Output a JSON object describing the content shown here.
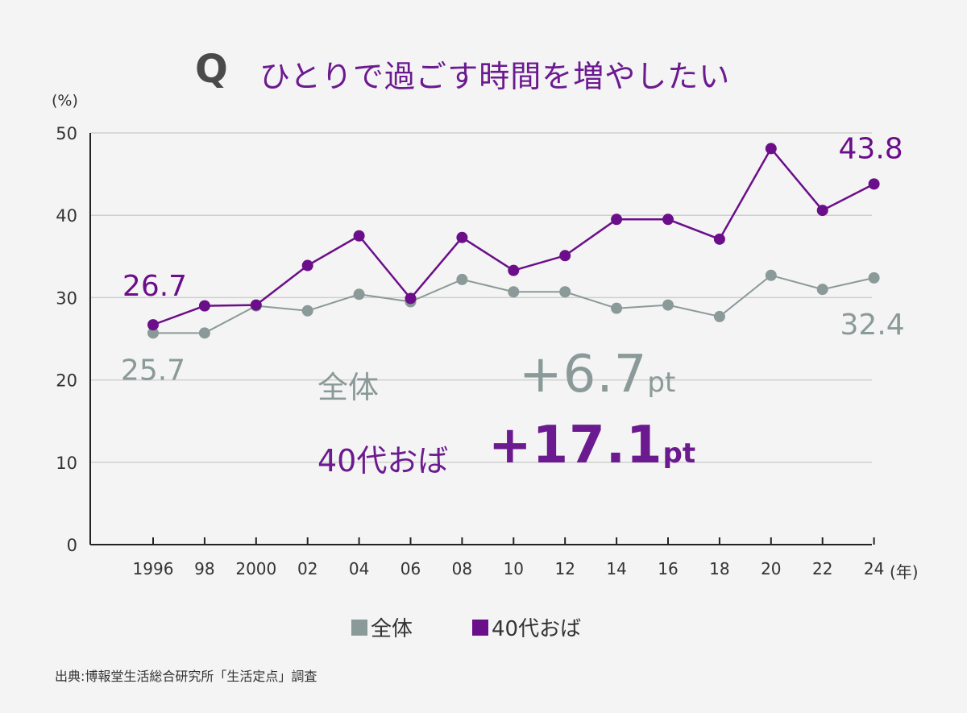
{
  "title": {
    "prefix": "Q",
    "text": "ひとりで過ごす時間を増やしたい"
  },
  "axis": {
    "y_unit": "(%)",
    "x_unit": "(年)"
  },
  "callouts": {
    "all_label": "全体",
    "all_change": "+6.7",
    "all_change_unit": "pt",
    "forty_label": "40代おば",
    "forty_change": "+17.1",
    "forty_change_unit": "pt"
  },
  "legend": [
    {
      "label": "全体",
      "color": "#8a9a98"
    },
    {
      "label": "40代おば",
      "color": "#6b0e8a"
    }
  ],
  "source": "出典:博報堂生活総合研究所「生活定点」調査",
  "colors": {
    "all": "#8a9a98",
    "forty": "#6b0e8a",
    "title": "#6b1a8f"
  },
  "chart_data": {
    "type": "line",
    "categories": [
      "1996",
      "98",
      "2000",
      "02",
      "04",
      "06",
      "08",
      "10",
      "12",
      "14",
      "16",
      "18",
      "20",
      "22",
      "24"
    ],
    "ylim": [
      0,
      50
    ],
    "yticks": [
      0,
      10,
      20,
      30,
      40,
      50
    ],
    "grid": true,
    "legend_position": "bottom",
    "series": [
      {
        "name": "全体",
        "color": "#8a9a98",
        "values": [
          25.7,
          25.7,
          29.0,
          28.4,
          30.4,
          29.5,
          32.2,
          30.7,
          30.7,
          28.7,
          29.1,
          27.7,
          32.7,
          31.0,
          32.4
        ],
        "point_labels": [
          {
            "index": 0,
            "text": "25.7"
          },
          {
            "index": 14,
            "text": "32.4"
          }
        ]
      },
      {
        "name": "40代おば",
        "color": "#6b0e8a",
        "values": [
          26.7,
          29.0,
          29.1,
          33.9,
          37.5,
          29.9,
          37.3,
          33.3,
          35.1,
          39.5,
          39.5,
          37.1,
          48.1,
          40.6,
          43.8
        ],
        "point_labels": [
          {
            "index": 0,
            "text": "26.7"
          },
          {
            "index": 14,
            "text": "43.8"
          }
        ]
      }
    ]
  }
}
